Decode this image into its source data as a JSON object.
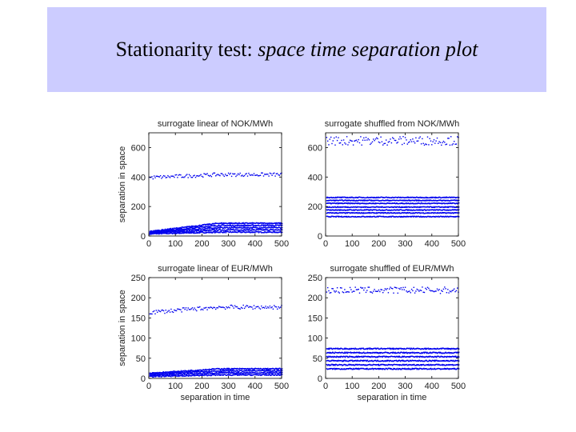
{
  "slide": {
    "title_plain": "Stationarity test: ",
    "title_italic": "space time separation plot"
  },
  "colors": {
    "band": "#ccccff",
    "marker": "#0000ee",
    "axis": "#000000"
  },
  "chart_data": [
    {
      "id": "nok-linear",
      "type": "scatter",
      "title": "surrogate linear of NOK/MWh",
      "ylabel": "separation in space",
      "xlabel": "",
      "xlim": [
        0,
        500
      ],
      "ylim": [
        0,
        700
      ],
      "xticks": [
        0,
        100,
        200,
        300,
        400,
        500
      ],
      "yticks": [
        0,
        200,
        400,
        600
      ],
      "xtick_labels": [
        "0",
        "100",
        "200",
        "300",
        "400",
        "500"
      ],
      "ytick_labels": [
        "0",
        "200",
        "400",
        "600"
      ],
      "bands": [
        {
          "start": 18,
          "end": 30,
          "noise": 4
        },
        {
          "start": 22,
          "end": 45,
          "noise": 4
        },
        {
          "start": 26,
          "end": 60,
          "noise": 4
        },
        {
          "start": 30,
          "end": 75,
          "noise": 4
        },
        {
          "start": 34,
          "end": 90,
          "noise": 4
        }
      ],
      "upper": [
        {
          "start": 400,
          "end": 420,
          "noise": 12
        }
      ]
    },
    {
      "id": "nok-shuffled",
      "type": "scatter",
      "title": "surrogate shuffled from NOK/MWh",
      "ylabel": "",
      "xlabel": "",
      "xlim": [
        0,
        500
      ],
      "ylim": [
        0,
        700
      ],
      "xticks": [
        0,
        100,
        200,
        300,
        400,
        500
      ],
      "yticks": [
        0,
        200,
        400,
        600
      ],
      "xtick_labels": [
        "0",
        "100",
        "200",
        "300",
        "400",
        "500"
      ],
      "ytick_labels": [
        "0",
        "200",
        "400",
        "600"
      ],
      "bands": [
        {
          "start": 135,
          "end": 135,
          "noise": 3
        },
        {
          "start": 160,
          "end": 160,
          "noise": 3
        },
        {
          "start": 180,
          "end": 180,
          "noise": 3
        },
        {
          "start": 200,
          "end": 200,
          "noise": 3
        },
        {
          "start": 225,
          "end": 225,
          "noise": 3
        },
        {
          "start": 245,
          "end": 245,
          "noise": 3
        },
        {
          "start": 265,
          "end": 265,
          "noise": 3
        }
      ],
      "upper": [
        {
          "start": 650,
          "end": 650,
          "noise": 30
        }
      ]
    },
    {
      "id": "eur-linear",
      "type": "scatter",
      "title": "surrogate linear of EUR/MWh",
      "ylabel": "separation in space",
      "xlabel": "separation in time",
      "xlim": [
        0,
        500
      ],
      "ylim": [
        0,
        250
      ],
      "xticks": [
        0,
        100,
        200,
        300,
        400,
        500
      ],
      "yticks": [
        0,
        50,
        100,
        150,
        200,
        250
      ],
      "xtick_labels": [
        "0",
        "100",
        "200",
        "300",
        "400",
        "500"
      ],
      "ytick_labels": [
        "0",
        "50",
        "100",
        "150",
        "200",
        "250"
      ],
      "bands": [
        {
          "start": 6,
          "end": 10,
          "noise": 1.5
        },
        {
          "start": 9,
          "end": 15,
          "noise": 1.5
        },
        {
          "start": 12,
          "end": 20,
          "noise": 1.5
        },
        {
          "start": 14,
          "end": 25,
          "noise": 1.5
        }
      ],
      "upper": [
        {
          "start": 165,
          "end": 178,
          "noise": 5
        }
      ]
    },
    {
      "id": "eur-shuffled",
      "type": "scatter",
      "title": "surrogate shuffled of EUR/MWh",
      "ylabel": "",
      "xlabel": "separation in time",
      "xlim": [
        0,
        500
      ],
      "ylim": [
        0,
        250
      ],
      "xticks": [
        0,
        100,
        200,
        300,
        400,
        500
      ],
      "yticks": [
        0,
        50,
        100,
        150,
        200,
        250
      ],
      "xtick_labels": [
        "0",
        "100",
        "200",
        "300",
        "400",
        "500"
      ],
      "ytick_labels": [
        "0",
        "50",
        "100",
        "150",
        "200",
        "250"
      ],
      "bands": [
        {
          "start": 25,
          "end": 25,
          "noise": 1.5
        },
        {
          "start": 35,
          "end": 35,
          "noise": 1.5
        },
        {
          "start": 45,
          "end": 45,
          "noise": 1.5
        },
        {
          "start": 55,
          "end": 55,
          "noise": 1.5
        },
        {
          "start": 65,
          "end": 65,
          "noise": 1.5
        },
        {
          "start": 75,
          "end": 75,
          "noise": 1.5
        }
      ],
      "upper": [
        {
          "start": 220,
          "end": 220,
          "noise": 8
        }
      ]
    }
  ]
}
